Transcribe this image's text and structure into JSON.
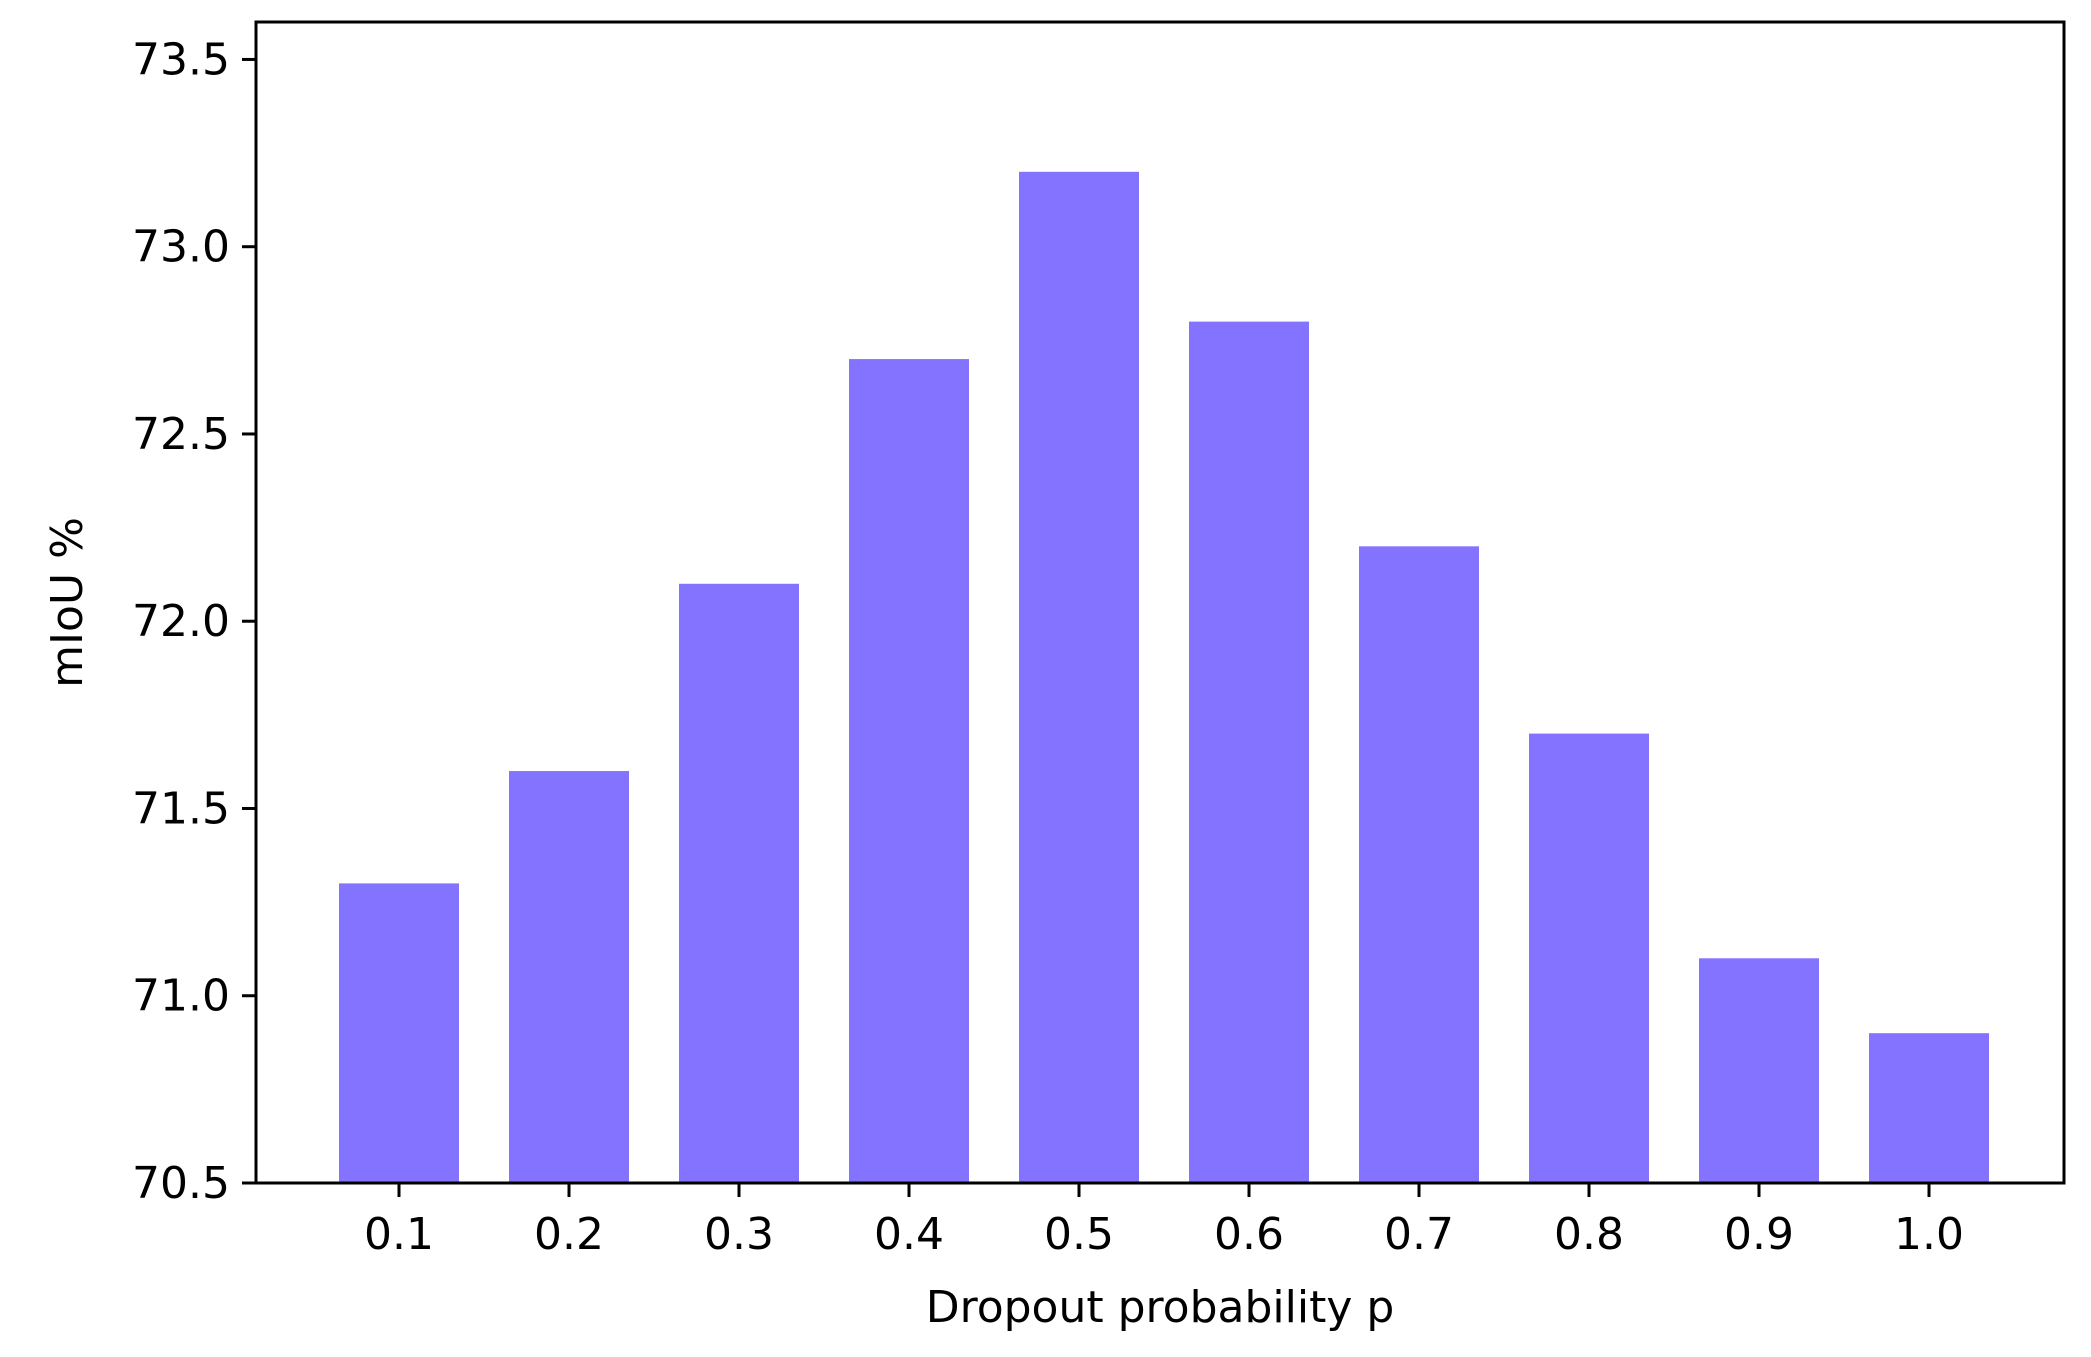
{
  "chart_data": {
    "type": "bar",
    "title": "",
    "xlabel": "Dropout probability p",
    "ylabel": "mIoU %",
    "categories": [
      "0.1",
      "0.2",
      "0.3",
      "0.4",
      "0.5",
      "0.6",
      "0.7",
      "0.8",
      "0.9",
      "1.0"
    ],
    "values": [
      71.3,
      71.6,
      72.1,
      72.7,
      73.2,
      72.8,
      72.2,
      71.7,
      71.1,
      70.9
    ],
    "ylim": [
      70.5,
      73.6
    ],
    "yticks": [
      "70.5",
      "71.0",
      "71.5",
      "72.0",
      "72.5",
      "73.0",
      "73.5"
    ],
    "bar_color": "#8473ff",
    "grid": false,
    "legend": "none"
  }
}
